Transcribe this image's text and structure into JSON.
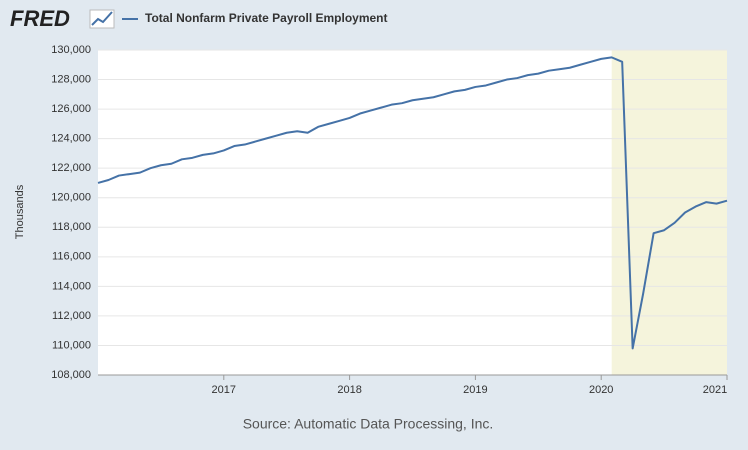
{
  "chart_data": {
    "type": "line",
    "brand": "FRED",
    "y_label": "Thousands",
    "source": "Source: Automatic Data Processing, Inc.",
    "x": [
      "2016-01",
      "2016-02",
      "2016-03",
      "2016-04",
      "2016-05",
      "2016-06",
      "2016-07",
      "2016-08",
      "2016-09",
      "2016-10",
      "2016-11",
      "2016-12",
      "2017-01",
      "2017-02",
      "2017-03",
      "2017-04",
      "2017-05",
      "2017-06",
      "2017-07",
      "2017-08",
      "2017-09",
      "2017-10",
      "2017-11",
      "2017-12",
      "2018-01",
      "2018-02",
      "2018-03",
      "2018-04",
      "2018-05",
      "2018-06",
      "2018-07",
      "2018-08",
      "2018-09",
      "2018-10",
      "2018-11",
      "2018-12",
      "2019-01",
      "2019-02",
      "2019-03",
      "2019-04",
      "2019-05",
      "2019-06",
      "2019-07",
      "2019-08",
      "2019-09",
      "2019-10",
      "2019-11",
      "2019-12",
      "2020-01",
      "2020-02",
      "2020-03",
      "2020-04",
      "2020-05",
      "2020-06",
      "2020-07",
      "2020-08",
      "2020-09",
      "2020-10",
      "2020-11",
      "2020-12",
      "2021-01"
    ],
    "series": [
      {
        "name": "Total Nonfarm Private Payroll Employment",
        "color": "#4572a7",
        "values": [
          121000,
          121200,
          121500,
          121600,
          121700,
          122000,
          122200,
          122300,
          122600,
          122700,
          122900,
          123000,
          123200,
          123500,
          123600,
          123800,
          124000,
          124200,
          124400,
          124500,
          124400,
          124800,
          125000,
          125200,
          125400,
          125700,
          125900,
          126100,
          126300,
          126400,
          126600,
          126700,
          126800,
          127000,
          127200,
          127300,
          127500,
          127600,
          127800,
          128000,
          128100,
          128300,
          128400,
          128600,
          128700,
          128800,
          129000,
          129200,
          129400,
          129500,
          129200,
          109800,
          113500,
          117600,
          117800,
          118300,
          119000,
          119400,
          119700,
          119600,
          119800
        ]
      }
    ],
    "xlim": [
      "2016-01",
      "2021-01"
    ],
    "xticks": [
      {
        "value": "2017-01",
        "label": "2017"
      },
      {
        "value": "2018-01",
        "label": "2018"
      },
      {
        "value": "2019-01",
        "label": "2019"
      },
      {
        "value": "2020-01",
        "label": "2020"
      },
      {
        "value": "2021-01",
        "label": "2021"
      }
    ],
    "ylim": [
      108000,
      130000
    ],
    "yticks": [
      {
        "value": 108000,
        "label": "108,000"
      },
      {
        "value": 110000,
        "label": "110,000"
      },
      {
        "value": 112000,
        "label": "112,000"
      },
      {
        "value": 114000,
        "label": "114,000"
      },
      {
        "value": 116000,
        "label": "116,000"
      },
      {
        "value": 118000,
        "label": "118,000"
      },
      {
        "value": 120000,
        "label": "120,000"
      },
      {
        "value": 122000,
        "label": "122,000"
      },
      {
        "value": 124000,
        "label": "124,000"
      },
      {
        "value": 126000,
        "label": "126,000"
      },
      {
        "value": 128000,
        "label": "128,000"
      },
      {
        "value": 130000,
        "label": "130,000"
      }
    ],
    "grid": true,
    "recession_start": "2020-02",
    "recession_color": "#f5f4dc"
  }
}
